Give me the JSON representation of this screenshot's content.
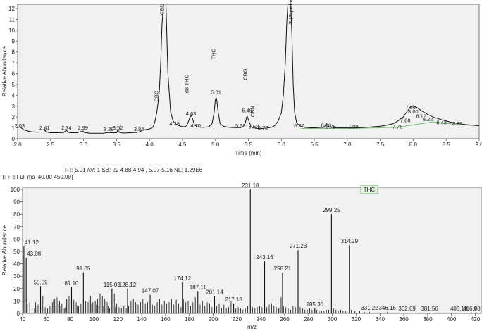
{
  "scan_info_line": "RT: 5.01   AV: 1   SB: 22  4.88-4.94 , 5.07-5.16   NL: 1.29E6",
  "scan_filter_line": "T: + c Full ms [40.00-450.00]",
  "chart_data": [
    {
      "type": "line",
      "name": "chromatogram",
      "title": "",
      "xlabel": "Time (min)",
      "ylabel": "Relative Abundance",
      "xlim": [
        2.0,
        9.0
      ],
      "ylim": [
        0,
        12
      ],
      "x_ticks": [
        "2.0",
        "2.5",
        "3.0",
        "3.5",
        "4.0",
        "4.5",
        "5.0",
        "5.5",
        "6.0",
        "6.5",
        "7.0",
        "7.5",
        "8.0",
        "8.5",
        "9.0"
      ],
      "y_ticks": [
        "0",
        "1",
        "2",
        "3",
        "4",
        "5",
        "6",
        "7",
        "8",
        "9",
        "10",
        "11",
        "12"
      ],
      "grid": false,
      "peak_labels": [
        {
          "x": 2.03,
          "y": 0.9,
          "text": "2.03"
        },
        {
          "x": 2.41,
          "y": 0.7,
          "text": "2.41"
        },
        {
          "x": 2.74,
          "y": 0.7,
          "text": "2.74"
        },
        {
          "x": 2.99,
          "y": 0.7,
          "text": "2.99"
        },
        {
          "x": 3.38,
          "y": 0.6,
          "text": "3.38"
        },
        {
          "x": 3.52,
          "y": 0.7,
          "text": "3.52"
        },
        {
          "x": 3.84,
          "y": 0.6,
          "text": "3.84"
        },
        {
          "x": 4.38,
          "y": 1.1,
          "text": "4.38"
        },
        {
          "x": 4.63,
          "y": 2.0,
          "text": "4.63"
        },
        {
          "x": 4.7,
          "y": 0.9,
          "text": "4.70"
        },
        {
          "x": 5.01,
          "y": 4.0,
          "text": "5.01"
        },
        {
          "x": 5.38,
          "y": 0.9,
          "text": "5.38"
        },
        {
          "x": 5.48,
          "y": 2.3,
          "text": "5.48"
        },
        {
          "x": 5.58,
          "y": 0.8,
          "text": "5.58"
        },
        {
          "x": 5.72,
          "y": 0.7,
          "text": "5.72"
        },
        {
          "x": 6.27,
          "y": 0.9,
          "text": "6.27"
        },
        {
          "x": 6.68,
          "y": 0.95,
          "text": "6.68"
        },
        {
          "x": 6.75,
          "y": 0.8,
          "text": "6.75"
        },
        {
          "x": 7.09,
          "y": 0.8,
          "text": "7.09"
        },
        {
          "x": 7.76,
          "y": 0.8,
          "text": "7.76"
        },
        {
          "x": 7.88,
          "y": 1.4,
          "text": "7.88"
        },
        {
          "x": 7.96,
          "y": 2.6,
          "text": "7.96"
        },
        {
          "x": 8.0,
          "y": 2.2,
          "text": "8.00"
        },
        {
          "x": 8.12,
          "y": 1.8,
          "text": "8.12"
        },
        {
          "x": 8.22,
          "y": 1.5,
          "text": "8.22"
        },
        {
          "x": 8.43,
          "y": 1.2,
          "text": "8.43"
        },
        {
          "x": 8.67,
          "y": 1.1,
          "text": "8.67"
        }
      ],
      "compound_labels": [
        {
          "x": 4.13,
          "y": 3.4,
          "text": "CBC"
        },
        {
          "x": 4.22,
          "y": 11.4,
          "text": "CBD"
        },
        {
          "x": 4.59,
          "y": 4.2,
          "text": "d8-THC"
        },
        {
          "x": 5.0,
          "y": 7.3,
          "text": "THC"
        },
        {
          "x": 5.48,
          "y": 5.4,
          "text": "CBG"
        },
        {
          "x": 5.59,
          "y": 2.0,
          "text": "CBN"
        },
        {
          "x": 6.17,
          "y": 10.4,
          "text": "IS (Squalane)"
        }
      ],
      "trace": {
        "x": [
          2.0,
          2.03,
          2.1,
          2.2,
          2.3,
          2.4,
          2.41,
          2.43,
          2.5,
          2.6,
          2.7,
          2.74,
          2.76,
          2.8,
          2.9,
          2.99,
          3.01,
          3.1,
          3.2,
          3.3,
          3.38,
          3.4,
          3.5,
          3.52,
          3.54,
          3.6,
          3.7,
          3.8,
          3.84,
          3.9,
          4.0,
          4.05,
          4.08,
          4.11,
          4.13,
          4.15,
          4.17,
          4.19,
          4.21,
          4.23,
          4.25,
          4.28,
          4.32,
          4.36,
          4.4,
          4.45,
          4.5,
          4.55,
          4.58,
          4.61,
          4.63,
          4.65,
          4.68,
          4.72,
          4.78,
          4.84,
          4.9,
          4.95,
          4.98,
          5.0,
          5.01,
          5.02,
          5.04,
          5.07,
          5.12,
          5.2,
          5.3,
          5.38,
          5.42,
          5.45,
          5.48,
          5.51,
          5.54,
          5.58,
          5.62,
          5.68,
          5.72,
          5.78,
          5.85,
          5.9,
          5.95,
          6.0,
          6.03,
          6.06,
          6.08,
          6.1,
          6.12,
          6.14,
          6.16,
          6.18,
          6.2,
          6.23,
          6.27,
          6.35,
          6.45,
          6.55,
          6.65,
          6.68,
          6.72,
          6.8,
          6.9,
          7.0,
          7.1,
          7.2,
          7.3,
          7.4,
          7.5,
          7.6,
          7.7,
          7.76,
          7.8,
          7.85,
          7.88,
          7.92,
          7.96,
          8.0,
          8.05,
          8.12,
          8.2,
          8.3,
          8.43,
          8.55,
          8.67,
          8.8,
          9.0
        ],
        "y": [
          1.0,
          1.1,
          0.8,
          0.65,
          0.6,
          0.62,
          0.85,
          0.62,
          0.55,
          0.55,
          0.58,
          0.8,
          0.6,
          0.55,
          0.55,
          0.72,
          0.58,
          0.5,
          0.5,
          0.5,
          0.58,
          0.55,
          0.55,
          0.82,
          0.6,
          0.52,
          0.55,
          0.58,
          0.62,
          0.8,
          0.9,
          1.05,
          1.5,
          2.4,
          3.3,
          4.5,
          7.0,
          10.5,
          12.2,
          13.2,
          12.5,
          6.0,
          2.5,
          1.6,
          1.35,
          1.2,
          1.1,
          1.12,
          1.4,
          1.9,
          2.2,
          1.9,
          1.3,
          1.1,
          1.05,
          1.05,
          1.1,
          1.4,
          2.4,
          3.6,
          3.8,
          3.6,
          2.5,
          1.4,
          1.15,
          1.05,
          1.02,
          1.02,
          1.1,
          1.4,
          2.1,
          1.6,
          1.1,
          1.0,
          0.95,
          0.92,
          0.95,
          0.98,
          1.05,
          1.2,
          1.6,
          2.4,
          4.0,
          7.0,
          10.5,
          12.5,
          13.2,
          12.8,
          9.5,
          5.0,
          2.5,
          1.5,
          1.2,
          1.05,
          1.0,
          1.02,
          1.05,
          1.4,
          1.1,
          1.02,
          1.0,
          1.0,
          1.0,
          1.02,
          1.05,
          1.1,
          1.15,
          1.25,
          1.4,
          1.6,
          1.8,
          2.0,
          2.3,
          2.6,
          2.95,
          3.05,
          2.9,
          2.6,
          2.3,
          2.0,
          1.75,
          1.55,
          1.4,
          1.3,
          1.2
        ],
        "baseline": [
          [
            6.3,
            0.95
          ],
          [
            7.1,
            0.95
          ],
          [
            7.76,
            1.05
          ],
          [
            8.3,
            1.55
          ],
          [
            8.67,
            1.3
          ],
          [
            9.0,
            1.2
          ]
        ]
      }
    },
    {
      "type": "bar",
      "name": "mass spectrum",
      "title": "",
      "xlabel": "m/z",
      "ylabel": "Relative Abundance",
      "legend": "THC",
      "xlim": [
        40,
        425
      ],
      "ylim": [
        0,
        100
      ],
      "x_ticks": [
        "40",
        "60",
        "80",
        "100",
        "120",
        "140",
        "160",
        "180",
        "200",
        "220",
        "240",
        "260",
        "280",
        "300",
        "320",
        "340",
        "360",
        "380",
        "400",
        "420"
      ],
      "y_ticks": [
        "0",
        "10",
        "20",
        "30",
        "40",
        "50",
        "60",
        "70",
        "80",
        "90",
        "100"
      ],
      "peaks": [
        {
          "x": 41.12,
          "y": 54,
          "label": "41.12"
        },
        {
          "x": 43.08,
          "y": 45,
          "label": "43.08"
        },
        {
          "x": 55.09,
          "y": 22,
          "label": "55.09"
        },
        {
          "x": 81.1,
          "y": 21,
          "label": "81.10"
        },
        {
          "x": 91.05,
          "y": 33,
          "label": "91.05"
        },
        {
          "x": 115.03,
          "y": 20,
          "label": "115.03"
        },
        {
          "x": 128.12,
          "y": 20,
          "label": "128.12"
        },
        {
          "x": 147.07,
          "y": 15,
          "label": "147.07"
        },
        {
          "x": 174.12,
          "y": 25,
          "label": "174.12"
        },
        {
          "x": 187.11,
          "y": 18,
          "label": "187.11"
        },
        {
          "x": 201.14,
          "y": 14,
          "label": "201.14"
        },
        {
          "x": 217.18,
          "y": 8,
          "label": "217.18"
        },
        {
          "x": 231.18,
          "y": 100,
          "label": "231.18"
        },
        {
          "x": 243.16,
          "y": 42,
          "label": "243.16"
        },
        {
          "x": 258.21,
          "y": 33,
          "label": "258.21"
        },
        {
          "x": 271.23,
          "y": 51,
          "label": "271.23"
        },
        {
          "x": 285.3,
          "y": 4,
          "label": "285.30"
        },
        {
          "x": 299.25,
          "y": 80,
          "label": "299.25"
        },
        {
          "x": 314.29,
          "y": 55,
          "label": "314.29"
        },
        {
          "x": 331.22,
          "y": 1,
          "label": "331.22"
        },
        {
          "x": 346.16,
          "y": 1,
          "label": "346.16"
        },
        {
          "x": 362.69,
          "y": 0.5,
          "label": "362.69"
        },
        {
          "x": 381.56,
          "y": 0.5,
          "label": "381.56"
        },
        {
          "x": 406.19,
          "y": 0.5,
          "label": "406.19"
        },
        {
          "x": 416.98,
          "y": 0.5,
          "label": "416.98"
        },
        {
          "x": 420.0,
          "y": 0.5,
          "label": "4"
        }
      ],
      "minor_peaks": {
        "x": [
          44,
          46,
          48,
          50,
          51,
          52,
          53,
          57,
          58,
          59,
          61,
          63,
          65,
          66,
          67,
          68,
          69,
          70,
          71,
          72,
          73,
          75,
          76,
          77,
          78,
          79,
          83,
          84,
          85,
          86,
          87,
          89,
          93,
          95,
          96,
          97,
          98,
          99,
          101,
          102,
          103,
          104,
          105,
          106,
          107,
          108,
          109,
          110,
          111,
          112,
          113,
          117,
          118,
          119,
          121,
          122,
          123,
          125,
          126,
          127,
          129,
          131,
          133,
          135,
          136,
          137,
          139,
          141,
          143,
          145,
          149,
          151,
          153,
          155,
          157,
          159,
          161,
          163,
          165,
          167,
          169,
          171,
          173,
          175,
          177,
          179,
          181,
          183,
          185,
          189,
          191,
          193,
          195,
          197,
          199,
          203,
          205,
          207,
          209,
          211,
          213,
          215,
          219,
          221,
          223,
          225,
          227,
          229,
          233,
          235,
          237,
          239,
          241,
          245,
          247,
          249,
          251,
          253,
          255,
          256,
          257,
          259,
          261,
          263,
          265,
          267,
          269,
          273,
          275,
          277,
          279,
          281,
          283,
          287,
          289,
          291,
          293,
          295,
          297,
          301,
          303,
          305,
          307,
          309,
          311,
          316,
          319,
          323,
          327
        ],
        "y": [
          8,
          9,
          4,
          4,
          9,
          6,
          7,
          14,
          6,
          5,
          4,
          6,
          9,
          11,
          12,
          6,
          13,
          8,
          10,
          6,
          8,
          4,
          5,
          12,
          11,
          14,
          11,
          7,
          9,
          6,
          6,
          8,
          10,
          9,
          11,
          14,
          8,
          9,
          10,
          7,
          12,
          6,
          16,
          12,
          14,
          6,
          12,
          10,
          9,
          6,
          4,
          16,
          5,
          8,
          5,
          4,
          4,
          6,
          7,
          4,
          6,
          10,
          12,
          9,
          8,
          7,
          9,
          12,
          8,
          9,
          7,
          6,
          9,
          12,
          7,
          10,
          8,
          9,
          12,
          7,
          11,
          8,
          5,
          12,
          9,
          10,
          6,
          9,
          13,
          7,
          10,
          6,
          9,
          8,
          5,
          6,
          8,
          4,
          7,
          4,
          5,
          10,
          4,
          5,
          4,
          3,
          4,
          6,
          5,
          4,
          5,
          6,
          5,
          5,
          7,
          8,
          6,
          5,
          4,
          5,
          13,
          6,
          5,
          4,
          3,
          6,
          5,
          5,
          4,
          3,
          3,
          4,
          3,
          3,
          2,
          2,
          2,
          3,
          3,
          4,
          3,
          2,
          3,
          2,
          2,
          3,
          2,
          2,
          1
        ]
      }
    }
  ]
}
